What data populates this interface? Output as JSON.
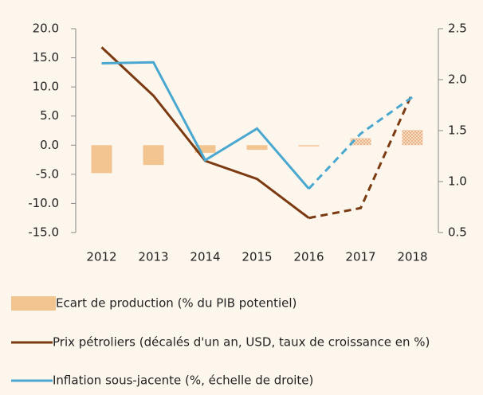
{
  "chart_data": {
    "type": "combo",
    "categories": [
      "2012",
      "2013",
      "2014",
      "2015",
      "2016",
      "2017",
      "2018"
    ],
    "series": [
      {
        "name": "Ecart de production (% du PIB potentiel)",
        "type": "bar",
        "color": "#f2c490",
        "values": [
          -4.8,
          -3.4,
          -1.3,
          -0.8,
          -0.2,
          1.2,
          2.6
        ],
        "hatched_from": "2017"
      },
      {
        "name": "Prix pétroliers (décalés d'un an, USD, taux de croissance en %)",
        "type": "line",
        "color": "#7b3a12",
        "values": [
          16.8,
          8.5,
          -2.7,
          -5.8,
          -12.5,
          -10.8,
          9.0
        ],
        "dashed_from": "2016"
      },
      {
        "name": "Inflation sous-jacente (%, échelle de droite)",
        "type": "line",
        "color": "#4aa8d0",
        "values": [
          2.16,
          2.17,
          1.21,
          1.52,
          0.93,
          1.47,
          1.83
        ],
        "axis": "y2",
        "dashed_from": "2016"
      }
    ],
    "ylim": [
      -15,
      20
    ],
    "yticks": [
      {
        "value": 20,
        "label": "20.0"
      },
      {
        "value": 15,
        "label": "15.0"
      },
      {
        "value": 10,
        "label": "10.0"
      },
      {
        "value": 5,
        "label": "5.0"
      },
      {
        "value": 0,
        "label": "0.0"
      },
      {
        "value": -5,
        "label": "-5.0"
      },
      {
        "value": -10,
        "label": "-10.0"
      },
      {
        "value": -15,
        "label": "-15.0"
      }
    ],
    "y2lim": [
      0.5,
      2.5
    ],
    "y2ticks": [
      {
        "value": 2.5,
        "label": "2.5"
      },
      {
        "value": 2,
        "label": "2.0"
      },
      {
        "value": 1.5,
        "label": "1.5"
      },
      {
        "value": 1,
        "label": "1.0"
      },
      {
        "value": 0.5,
        "label": "0.5"
      }
    ]
  }
}
